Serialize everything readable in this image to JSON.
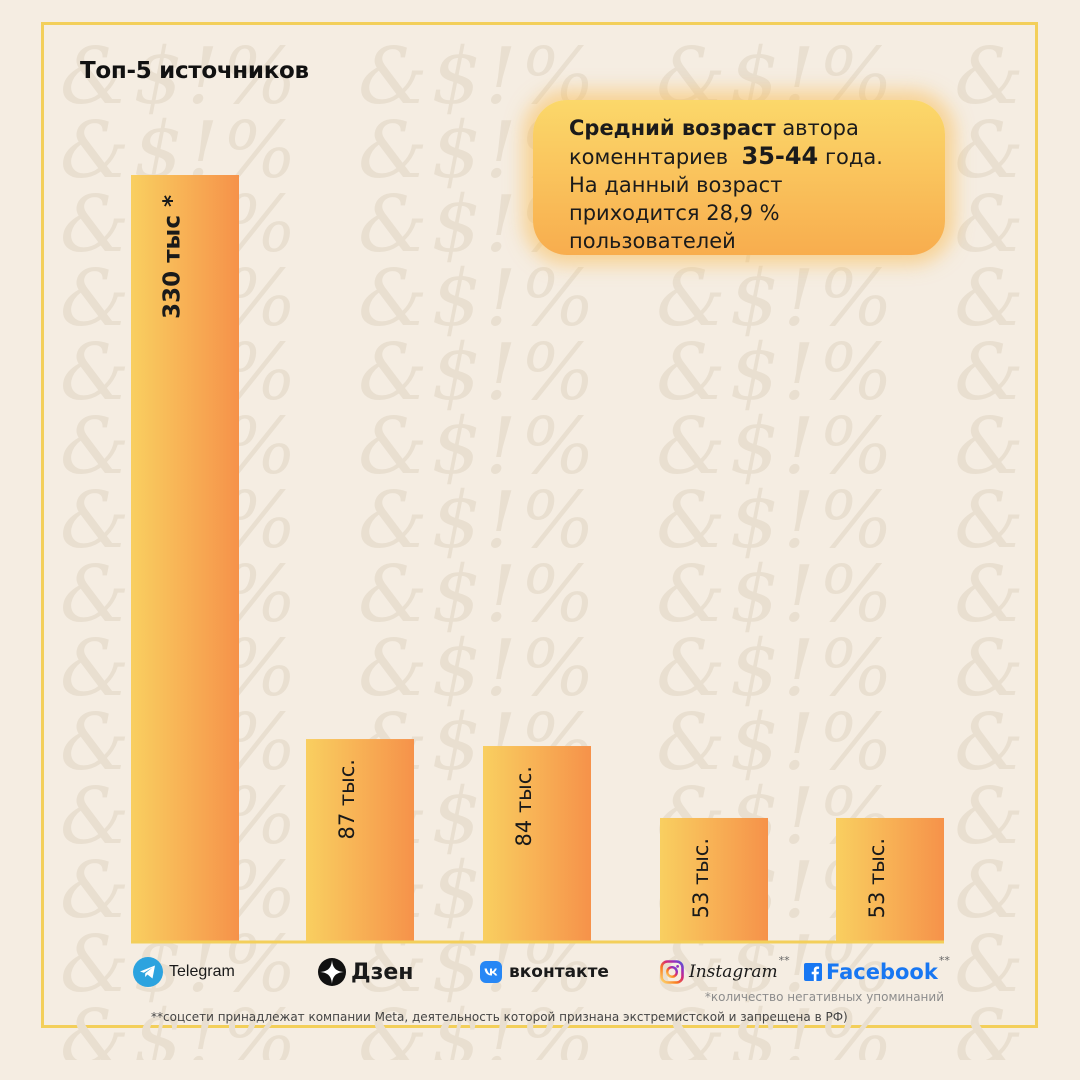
{
  "title": "Топ-5 источников",
  "callout": {
    "line1_bold": "Средний возраст",
    "line1_rest": " автора",
    "line2_text": "коменнтариев",
    "line2_bold": "35-44",
    "line2_rest": "года.",
    "line3": "На данный возраст",
    "line4": "приходится 28,9 %",
    "line5": "пользователей"
  },
  "colors": {
    "frame": "#f3cf5a",
    "bar_top": "#f9cf60",
    "bar_bottom": "#f6924a",
    "axis": "#f3cf5a",
    "telegram": "#2ca3df",
    "vk": "#2787f5",
    "facebook": "#1877f2"
  },
  "chart_data": {
    "type": "bar",
    "categories": [
      "Telegram",
      "Дзен",
      "вконтакте",
      "Instagram",
      "Facebook"
    ],
    "values": [
      330,
      87,
      84,
      53,
      53
    ],
    "value_labels": [
      "330 тыс *",
      "87 тыс.",
      "84 тыс.",
      "53 тыс.",
      "53 тыс."
    ],
    "ylim": [
      0,
      330
    ],
    "grid": false,
    "legend": "none"
  },
  "brands": {
    "telegram": "Telegram",
    "dzen": "Дзен",
    "vk": "вконтакте",
    "instagram": "Instagram",
    "facebook": "Facebook",
    "instagram_mark": "**",
    "facebook_mark": "**"
  },
  "footnotes": {
    "note1": "*количество негативных упоминаний",
    "note2": "**соцсети принадлежат компании Meta, деятельность которой признана экстремистской и запрещена в РФ)"
  }
}
